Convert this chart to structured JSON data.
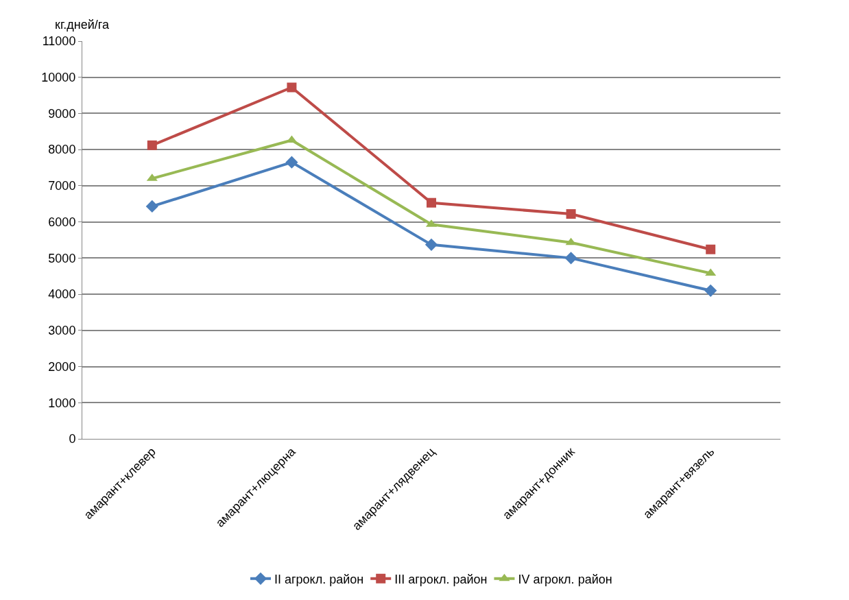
{
  "chart_data": {
    "type": "line",
    "ylabel": "кг.дней/га",
    "categories": [
      "амарант+клевер",
      "амарант+люцерна",
      "амарант+лядвенец",
      "амарант+донник",
      "амарант+вязель"
    ],
    "series": [
      {
        "name": "II агрокл. район",
        "color": "#4a7ebb",
        "marker": "diamond",
        "values": [
          6430,
          7650,
          5370,
          5000,
          4100
        ]
      },
      {
        "name": "III агрокл. район",
        "color": "#be4b48",
        "marker": "square",
        "values": [
          8120,
          9720,
          6530,
          6220,
          5240
        ]
      },
      {
        "name": "IV агрокл. район",
        "color": "#98b954",
        "marker": "triangle",
        "values": [
          7200,
          8260,
          5930,
          5430,
          4580
        ]
      }
    ],
    "ylim": [
      0,
      11000
    ],
    "yticks": [
      0,
      1000,
      2000,
      3000,
      4000,
      5000,
      6000,
      7000,
      8000,
      9000,
      10000,
      11000
    ],
    "grid": "y",
    "legend": "bottom",
    "line_style": "solid"
  }
}
